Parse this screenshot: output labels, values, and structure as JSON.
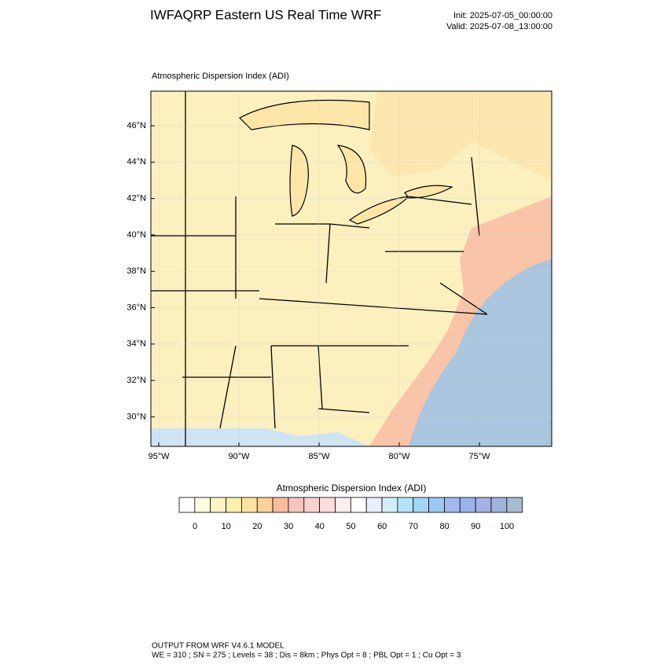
{
  "header": {
    "title": "IWFAQRP Eastern US Real Time WRF",
    "init": "Init: 2025-07-05_00:00:00",
    "valid": "Valid: 2025-07-08_13:00:00"
  },
  "map": {
    "label": "Atmospheric Dispersion Index   (ADI)",
    "lat_ticks": [
      {
        "value": 46,
        "label": "46°N"
      },
      {
        "value": 44,
        "label": "44°N"
      },
      {
        "value": 42,
        "label": "42°N"
      },
      {
        "value": 40,
        "label": "40°N"
      },
      {
        "value": 38,
        "label": "38°N"
      },
      {
        "value": 36,
        "label": "36°N"
      },
      {
        "value": 34,
        "label": "34°N"
      },
      {
        "value": 32,
        "label": "32°N"
      },
      {
        "value": 30,
        "label": "30°N"
      }
    ],
    "lon_ticks": [
      {
        "value": -95,
        "label": "95°W"
      },
      {
        "value": -90,
        "label": "90°W"
      },
      {
        "value": -85,
        "label": "85°W"
      },
      {
        "value": -80,
        "label": "80°W"
      },
      {
        "value": -75,
        "label": "75°W"
      }
    ]
  },
  "colorbar": {
    "title": "Atmospheric Dispersion Index  (ADI)",
    "ticks": [
      0,
      10,
      20,
      30,
      40,
      50,
      60,
      70,
      80,
      90,
      100
    ],
    "colors": [
      "#ffffff",
      "#fffde0",
      "#fff5c4",
      "#ffefb0",
      "#ffe4a0",
      "#fdd09a",
      "#f9bc9c",
      "#f6c4bc",
      "#f8d2cc",
      "#fae0dc",
      "#fdeeec",
      "#ffffff",
      "#e8f0ff",
      "#d2eefb",
      "#b4e2f8",
      "#a2d6f6",
      "#9cc8f2",
      "#a2b8f0",
      "#9cb2ea",
      "#a2b2e2",
      "#9cb6da",
      "#a6bcd2"
    ]
  },
  "footer": {
    "line1": "OUTPUT FROM WRF V4.6.1 MODEL",
    "line2": "WE = 310 ; SN = 275 ; Levels = 38 ; Dis = 8km ; Phys Opt = 8 ; PBL Opt = 1 ; Cu Opt = 3"
  }
}
